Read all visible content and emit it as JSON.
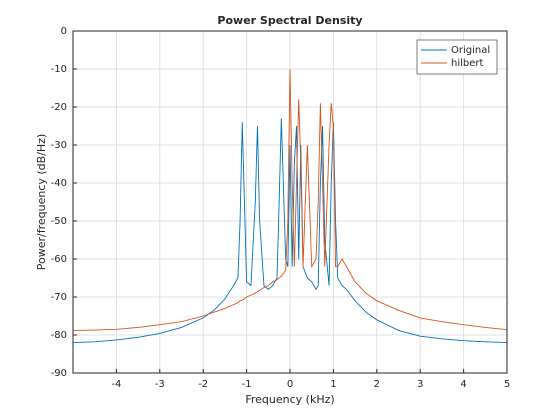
{
  "chart_data": {
    "type": "line",
    "title": "Power Spectral Density",
    "xlabel": "Frequency (kHz)",
    "ylabel": "Power/frequency (dB/Hz)",
    "x": [
      -5,
      -4.5,
      -4,
      -3.5,
      -3,
      -2.5,
      -2,
      -1.75,
      -1.5,
      -1.3,
      -1.2,
      -1.15,
      -1.1,
      -1.05,
      -1.0,
      -0.9,
      -0.8,
      -0.75,
      -0.7,
      -0.6,
      -0.5,
      -0.4,
      -0.3,
      -0.25,
      -0.2,
      -0.1,
      -0.05,
      0,
      0.05,
      0.1,
      0.15,
      0.2,
      0.25,
      0.3,
      0.4,
      0.5,
      0.6,
      0.65,
      0.7,
      0.75,
      0.8,
      0.9,
      0.95,
      1.0,
      1.05,
      1.1,
      1.2,
      1.3,
      1.5,
      1.75,
      2,
      2.5,
      3,
      3.5,
      4,
      4.5,
      5
    ],
    "series": [
      {
        "name": "Original",
        "color": "#0072bd",
        "values": [
          -82,
          -81.8,
          -81.3,
          -80.6,
          -79.6,
          -78,
          -75.5,
          -73.5,
          -70.5,
          -67,
          -65,
          -50,
          -24,
          -45,
          -66,
          -67,
          -45,
          -25,
          -50,
          -67,
          -68,
          -67,
          -65,
          -45,
          -23,
          -60,
          -62,
          -30,
          -62,
          -35,
          -25,
          -60,
          -30,
          -62,
          -65,
          -66,
          -68,
          -67,
          -40,
          -25,
          -55,
          -67,
          -40,
          -24,
          -50,
          -65,
          -67,
          -68,
          -71,
          -74,
          -76,
          -78.8,
          -80.3,
          -81,
          -81.5,
          -81.8,
          -82
        ]
      },
      {
        "name": "hilbert",
        "color": "#d95319",
        "values": [
          -78.8,
          -78.7,
          -78.5,
          -78,
          -77.3,
          -76.5,
          -75,
          -74,
          -73,
          -72,
          -71.5,
          -71,
          -70.8,
          -70.5,
          -70,
          -69.5,
          -69,
          -68.6,
          -68.3,
          -67.5,
          -67,
          -66,
          -65.5,
          -65,
          -64.5,
          -63,
          -50,
          -10,
          -40,
          -62,
          -40,
          -18,
          -35,
          -62,
          -30,
          -62,
          -60,
          -45,
          -19,
          -40,
          -62,
          -30,
          -19,
          -25,
          -62,
          -62,
          -60,
          -62,
          -66,
          -69,
          -71,
          -73.5,
          -75.5,
          -76.5,
          -77.3,
          -78,
          -78.6
        ]
      }
    ],
    "xlim": [
      -5,
      5
    ],
    "xticks": [
      -4,
      -3,
      -2,
      -1,
      0,
      1,
      2,
      3,
      4,
      5
    ],
    "ylim": [
      -90,
      0
    ],
    "yticks": [
      -90,
      -80,
      -70,
      -60,
      -50,
      -40,
      -30,
      -20,
      -10,
      0
    ],
    "grid": true,
    "legend": "northeast"
  }
}
